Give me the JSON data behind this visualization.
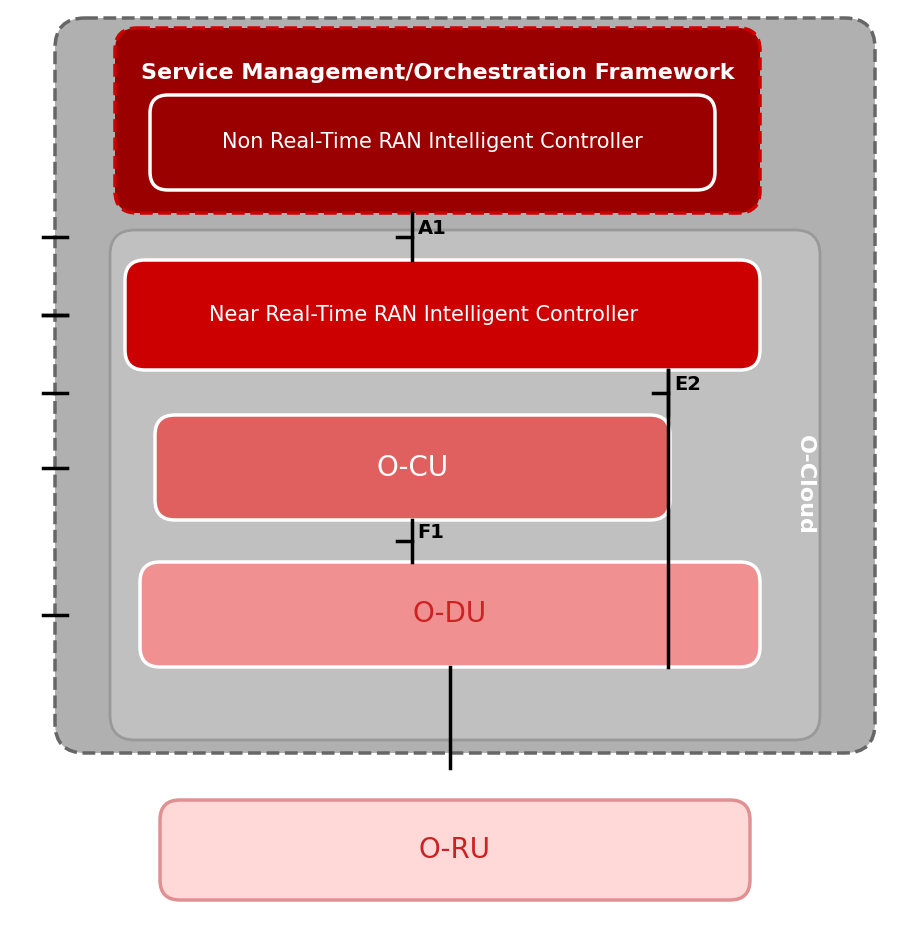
{
  "bg_color": "#ffffff",
  "outer_bg": "#b0b0b0",
  "outer_edge": "#666666",
  "inner_bg": "#c0c0c0",
  "inner_edge": "#999999",
  "smof_bg": "#9b0000",
  "smof_edge": "#cc0000",
  "smof_text": "Service Management/Orchestration Framework",
  "smof_text_color": "#ffffff",
  "nrt_ric_bg": "#9b0000",
  "nrt_ric_edge": "#ffffff",
  "nrt_ric_text": "Non Real-Time RAN Intelligent Controller",
  "nrt_ric_text_color": "#ffffff",
  "near_rt_ric_bg": "#cc0000",
  "near_rt_ric_edge": "#ffffff",
  "near_rt_ric_text": "Near Real-Time RAN Intelligent Controller",
  "near_rt_ric_text_color": "#ffffff",
  "o_cu_bg": "#e06060",
  "o_cu_edge": "#ffffff",
  "o_cu_text": "O-CU",
  "o_cu_text_color": "#ffffff",
  "o_du_bg": "#f09090",
  "o_du_edge": "#ffffff",
  "o_du_text": "O-DU",
  "o_du_text_color": "#cc2222",
  "o_ru_bg": "#ffd8d8",
  "o_ru_edge": "#e09090",
  "o_ru_text": "O-RU",
  "o_ru_text_color": "#cc2222",
  "ocloud_text": "O-Cloud",
  "ocloud_text_color": "#ffffff",
  "interface_a1": "A1",
  "interface_e2": "E2",
  "interface_f1": "F1",
  "line_color": "#000000"
}
